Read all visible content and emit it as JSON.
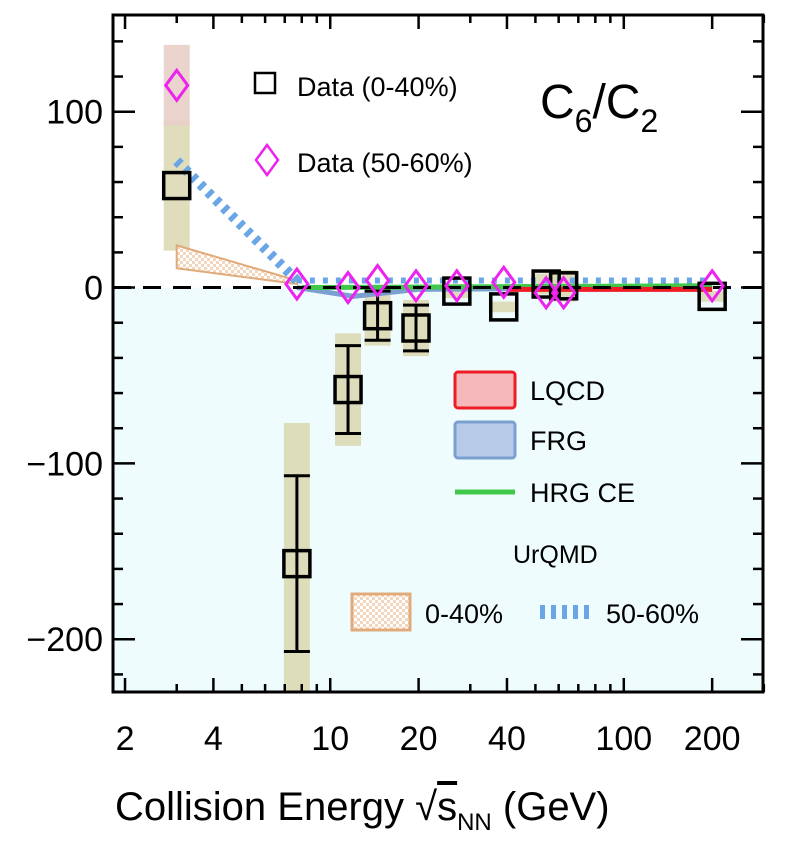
{
  "chart_data": {
    "type": "scatter",
    "title": "C6/C2",
    "xlabel": "Collision Energy √sNN (GeV)",
    "xlabel_parts": {
      "main": "Collision Energy ",
      "sqrt": "√",
      "s": "s",
      "sub": "NN",
      "unit": " (GeV)"
    },
    "x_scale": "log",
    "xlim": [
      1.82,
      298
    ],
    "ylim": [
      -230,
      155
    ],
    "x_ticks": [
      2,
      4,
      10,
      20,
      40,
      100,
      200
    ],
    "y_ticks": [
      100,
      0,
      -100,
      -200
    ],
    "y_tick_labels": [
      "100",
      "0",
      "−100",
      "−200"
    ],
    "zero_line": "dashed",
    "negative_region_color": "#effcfd",
    "series": [
      {
        "name": "Data (0-40%)",
        "marker": "square",
        "color": "#000000",
        "sys_color": "#dcd9b4",
        "points": [
          {
            "x": 3.0,
            "y": 58,
            "stat": 2,
            "sys": 37
          },
          {
            "x": 7.7,
            "y": -157,
            "stat": 50,
            "sys": 80
          },
          {
            "x": 11.5,
            "y": -58,
            "stat": 25,
            "sys": 32
          },
          {
            "x": 14.5,
            "y": -16,
            "stat": 14,
            "sys": 17
          },
          {
            "x": 19.6,
            "y": -23,
            "stat": 13,
            "sys": 16
          },
          {
            "x": 27,
            "y": -2,
            "stat": 3,
            "sys": 4
          },
          {
            "x": 39,
            "y": -11,
            "stat": 2,
            "sys": 3
          },
          {
            "x": 54.4,
            "y": 2,
            "stat": 2,
            "sys": 6
          },
          {
            "x": 62.4,
            "y": 1,
            "stat": 2,
            "sys": 9
          },
          {
            "x": 200,
            "y": -5,
            "stat": 2,
            "sys": 3
          }
        ]
      },
      {
        "name": "Data (50-60%)",
        "marker": "diamond",
        "color": "#ee22ee",
        "sys_color": "#e8cfc8",
        "points": [
          {
            "x": 3.0,
            "y": 115,
            "sys": 23
          },
          {
            "x": 7.7,
            "y": 2
          },
          {
            "x": 11.5,
            "y": 0
          },
          {
            "x": 14.5,
            "y": 4
          },
          {
            "x": 19.6,
            "y": 1
          },
          {
            "x": 27,
            "y": 1
          },
          {
            "x": 39,
            "y": 3
          },
          {
            "x": 54.4,
            "y": -3
          },
          {
            "x": 62.4,
            "y": -3
          },
          {
            "x": 200,
            "y": 1
          }
        ]
      }
    ],
    "models": [
      {
        "name": "LQCD",
        "color": "#ee1c24",
        "fill": "#f7b8bb",
        "x": [
          40,
          200
        ],
        "y": [
          -1,
          -1
        ]
      },
      {
        "name": "FRG",
        "color": "#7a9fd0",
        "fill": "#b7cbe8",
        "x": [
          7.7,
          12,
          20,
          200
        ],
        "y": [
          0,
          -5,
          -1,
          0
        ]
      },
      {
        "name": "HRG CE",
        "color": "#3fc84a",
        "x": [
          8,
          200
        ],
        "y": [
          0,
          1
        ]
      },
      {
        "name": "0-40%",
        "group": "UrQMD",
        "color": "#e0aa7a",
        "x": [
          3,
          7.7
        ],
        "y_low": [
          11,
          2
        ],
        "y_high": [
          24,
          4
        ]
      },
      {
        "name": "50-60%",
        "group": "UrQMD",
        "color": "#6aa6e6",
        "x": [
          3,
          7.7,
          200
        ],
        "y": [
          72,
          4,
          4
        ]
      }
    ],
    "legend_group_title": "UrQMD"
  }
}
